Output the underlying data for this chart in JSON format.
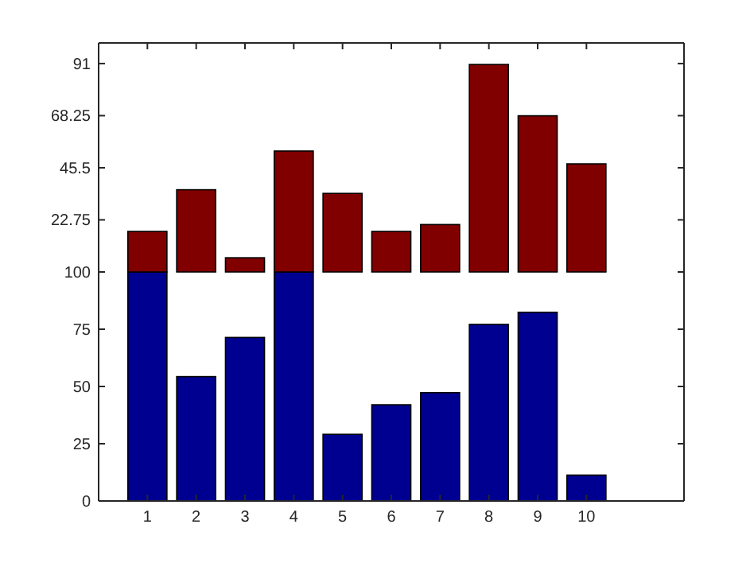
{
  "chart_data": [
    {
      "type": "bar",
      "x": [
        1,
        2,
        3,
        4,
        5,
        6,
        7,
        8,
        9,
        10
      ],
      "values": [
        17.7,
        35.9,
        6.2,
        52.8,
        34.3,
        17.7,
        20.7,
        90.6,
        68.2,
        47.2
      ],
      "color": "#800000",
      "xlim": [
        0,
        12
      ],
      "xticks": [
        1,
        2,
        3,
        4,
        5,
        6,
        7,
        8,
        9,
        10
      ],
      "ylim": [
        0,
        100
      ],
      "yticks": [
        22.75,
        45.5,
        68.25,
        91
      ],
      "tick_labels": "y",
      "grid": false
    },
    {
      "type": "bar",
      "x": [
        1,
        2,
        3,
        4,
        5,
        6,
        7,
        8,
        9,
        10
      ],
      "values": [
        100,
        54.3,
        71.4,
        100,
        29.1,
        42.0,
        47.3,
        77.1,
        82.4,
        11.3
      ],
      "color": "#000090",
      "xlim": [
        0,
        12
      ],
      "xticks": [
        1,
        2,
        3,
        4,
        5,
        6,
        7,
        8,
        9,
        10
      ],
      "ylim": [
        0,
        100
      ],
      "yticks": [
        0,
        25,
        50,
        75,
        100
      ],
      "grid": false
    }
  ]
}
